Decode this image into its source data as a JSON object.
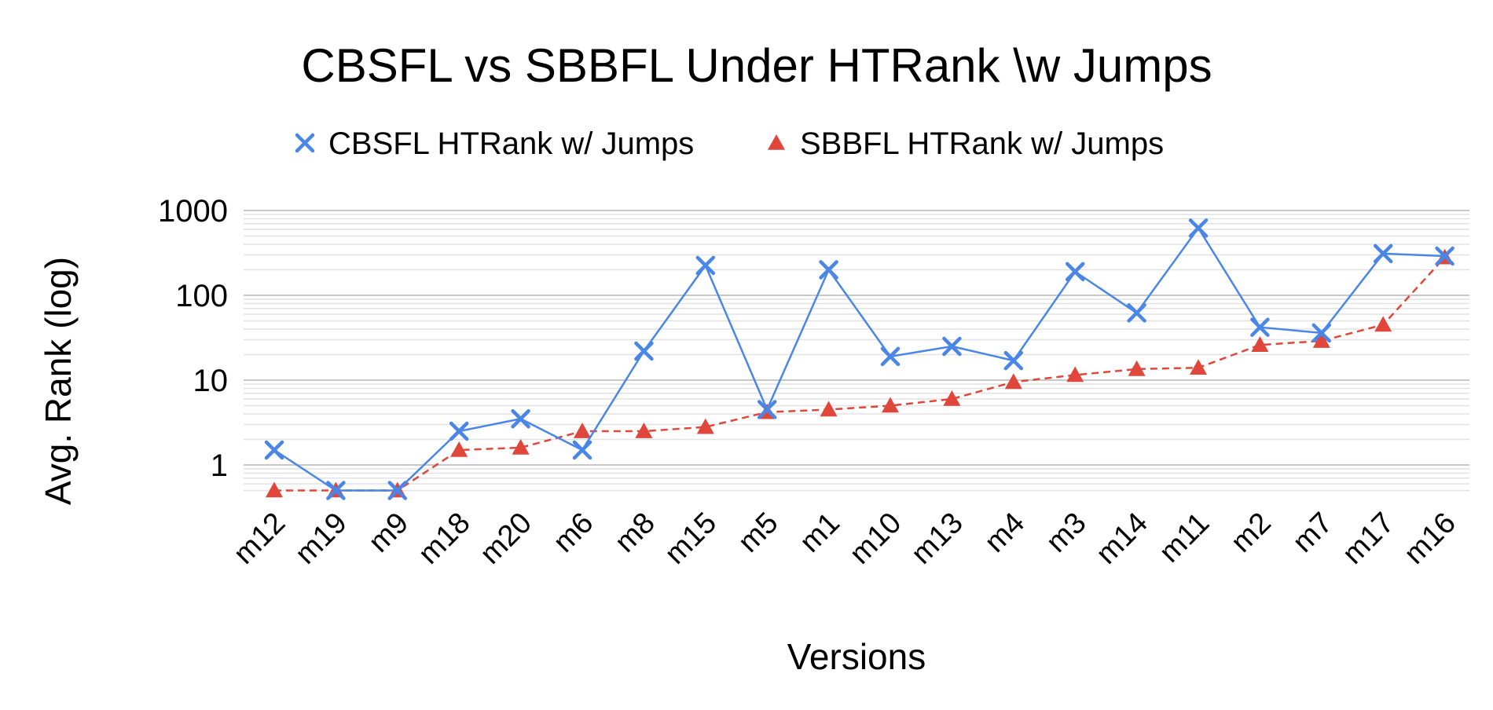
{
  "chart_data": {
    "type": "line",
    "title": "CBSFL vs SBBFL Under HTRank \\w Jumps",
    "xlabel": "Versions",
    "ylabel": "Avg. Rank (log)",
    "yscale": "log",
    "ylim": [
      0.5,
      1000
    ],
    "yticks": [
      "1",
      "10",
      "100",
      "1000"
    ],
    "grid": true,
    "legend_position": "top",
    "categories": [
      "m12",
      "m19",
      "m9",
      "m18",
      "m20",
      "m6",
      "m8",
      "m15",
      "m5",
      "m1",
      "m10",
      "m13",
      "m4",
      "m3",
      "m14",
      "m11",
      "m2",
      "m7",
      "m17",
      "m16"
    ],
    "series": [
      {
        "name": "CBSFL HTRank w/ Jumps",
        "color": "#4a86e8",
        "marker": "x",
        "line_style": "solid",
        "values": [
          1.5,
          0.5,
          0.5,
          2.5,
          3.5,
          1.5,
          22,
          225,
          4.5,
          200,
          19,
          25,
          17,
          190,
          62,
          620,
          42,
          36,
          310,
          290
        ]
      },
      {
        "name": "SBBFL HTRank w/ Jumps",
        "color": "#e0463a",
        "marker": "triangle",
        "line_style": "dashed",
        "values": [
          0.5,
          0.5,
          0.5,
          1.5,
          1.6,
          2.5,
          2.5,
          2.8,
          4.2,
          4.5,
          5.0,
          6.0,
          9.5,
          11.5,
          13.5,
          14,
          26,
          29,
          45,
          280
        ]
      }
    ]
  }
}
